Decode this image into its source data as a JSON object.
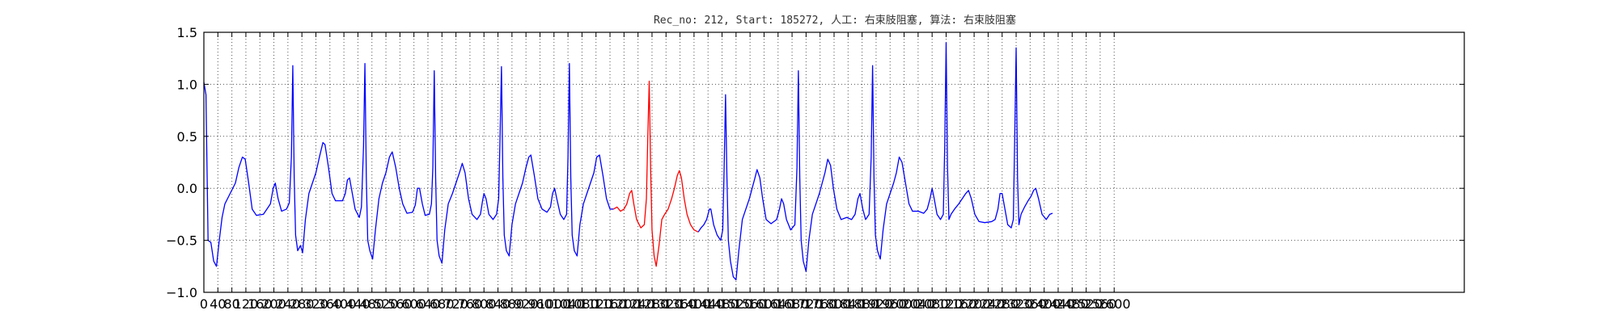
{
  "chart_data": {
    "type": "line",
    "title": "Rec_no: 212, Start: 185272, 人工: 右束肢阻塞, 算法: 右束肢阻塞",
    "xlabel": "",
    "ylabel": "",
    "xlim": [
      0,
      3600
    ],
    "ylim": [
      -1.0,
      1.5
    ],
    "grid": true,
    "y_ticks": [
      "1.5",
      "1.0",
      "0.5",
      "0.0",
      "−0.5",
      "−1.0"
    ],
    "x_ticks": [
      "0",
      "40",
      "80",
      "120",
      "160",
      "200",
      "240",
      "280",
      "320",
      "360",
      "400",
      "440",
      "480",
      "520",
      "560",
      "600",
      "640",
      "680",
      "720",
      "760",
      "800",
      "840",
      "880",
      "920",
      "960",
      "1000",
      "1040",
      "1080",
      "1120",
      "1160",
      "1200",
      "1240",
      "1280",
      "1320",
      "1360",
      "1400",
      "1440",
      "1480",
      "1520",
      "1560",
      "1600",
      "1640",
      "1680",
      "1720",
      "1760",
      "1800",
      "1840",
      "1880",
      "1920",
      "1960",
      "2000",
      "2040",
      "2080",
      "2120",
      "2160",
      "2200",
      "2240",
      "2280",
      "2320",
      "2360",
      "2400",
      "2440",
      "2480",
      "2520",
      "2560",
      "2600"
    ],
    "series": [
      {
        "color": "#0000ff",
        "values": [
          [
            0,
            1.02
          ],
          [
            6,
            0.9
          ],
          [
            12,
            -0.5
          ],
          [
            20,
            -0.52
          ],
          [
            28,
            -0.7
          ],
          [
            36,
            -0.75
          ],
          [
            44,
            -0.5
          ],
          [
            52,
            -0.28
          ],
          [
            60,
            -0.15
          ],
          [
            75,
            -0.05
          ],
          [
            90,
            0.05
          ],
          [
            100,
            0.2
          ],
          [
            110,
            0.3
          ],
          [
            118,
            0.28
          ],
          [
            128,
            0.05
          ],
          [
            138,
            -0.2
          ],
          [
            150,
            -0.26
          ],
          [
            170,
            -0.25
          ],
          [
            180,
            -0.2
          ],
          [
            190,
            -0.15
          ],
          [
            198,
            0.0
          ],
          [
            204,
            0.05
          ],
          [
            212,
            -0.1
          ],
          [
            222,
            -0.22
          ],
          [
            236,
            -0.2
          ],
          [
            244,
            -0.14
          ],
          [
            250,
            0.3
          ],
          [
            254,
            1.18
          ],
          [
            258,
            0.1
          ],
          [
            262,
            -0.45
          ],
          [
            268,
            -0.6
          ],
          [
            276,
            -0.55
          ],
          [
            282,
            -0.62
          ],
          [
            290,
            -0.3
          ],
          [
            300,
            -0.05
          ],
          [
            310,
            0.05
          ],
          [
            320,
            0.15
          ],
          [
            330,
            0.3
          ],
          [
            340,
            0.44
          ],
          [
            346,
            0.42
          ],
          [
            356,
            0.2
          ],
          [
            366,
            -0.05
          ],
          [
            376,
            -0.12
          ],
          [
            396,
            -0.12
          ],
          [
            404,
            -0.05
          ],
          [
            410,
            0.08
          ],
          [
            416,
            0.1
          ],
          [
            424,
            -0.05
          ],
          [
            432,
            -0.2
          ],
          [
            444,
            -0.28
          ],
          [
            450,
            -0.18
          ],
          [
            456,
            0.4
          ],
          [
            460,
            1.2
          ],
          [
            464,
            0.1
          ],
          [
            468,
            -0.5
          ],
          [
            474,
            -0.6
          ],
          [
            482,
            -0.68
          ],
          [
            490,
            -0.4
          ],
          [
            500,
            -0.1
          ],
          [
            510,
            0.05
          ],
          [
            520,
            0.15
          ],
          [
            530,
            0.3
          ],
          [
            538,
            0.35
          ],
          [
            548,
            0.2
          ],
          [
            558,
            0.0
          ],
          [
            568,
            -0.15
          ],
          [
            580,
            -0.24
          ],
          [
            596,
            -0.23
          ],
          [
            604,
            -0.16
          ],
          [
            610,
            0.0
          ],
          [
            616,
            0.0
          ],
          [
            624,
            -0.15
          ],
          [
            632,
            -0.26
          ],
          [
            644,
            -0.25
          ],
          [
            650,
            -0.15
          ],
          [
            654,
            0.2
          ],
          [
            658,
            1.13
          ],
          [
            662,
            0.1
          ],
          [
            666,
            -0.5
          ],
          [
            672,
            -0.65
          ],
          [
            680,
            -0.72
          ],
          [
            688,
            -0.4
          ],
          [
            698,
            -0.15
          ],
          [
            710,
            -0.05
          ],
          [
            720,
            0.05
          ],
          [
            730,
            0.15
          ],
          [
            738,
            0.24
          ],
          [
            746,
            0.15
          ],
          [
            756,
            -0.1
          ],
          [
            766,
            -0.25
          ],
          [
            780,
            -0.3
          ],
          [
            790,
            -0.25
          ],
          [
            796,
            -0.12
          ],
          [
            800,
            -0.05
          ],
          [
            806,
            -0.1
          ],
          [
            814,
            -0.25
          ],
          [
            826,
            -0.3
          ],
          [
            836,
            -0.25
          ],
          [
            842,
            -0.1
          ],
          [
            846,
            0.5
          ],
          [
            850,
            1.17
          ],
          [
            854,
            0.1
          ],
          [
            858,
            -0.45
          ],
          [
            864,
            -0.6
          ],
          [
            872,
            -0.65
          ],
          [
            880,
            -0.35
          ],
          [
            890,
            -0.15
          ],
          [
            900,
            -0.05
          ],
          [
            910,
            0.05
          ],
          [
            920,
            0.2
          ],
          [
            928,
            0.3
          ],
          [
            934,
            0.32
          ],
          [
            944,
            0.12
          ],
          [
            954,
            -0.1
          ],
          [
            966,
            -0.2
          ],
          [
            980,
            -0.23
          ],
          [
            990,
            -0.18
          ],
          [
            996,
            -0.05
          ],
          [
            1002,
            0.0
          ],
          [
            1008,
            -0.1
          ],
          [
            1018,
            -0.25
          ],
          [
            1028,
            -0.3
          ],
          [
            1036,
            -0.25
          ],
          [
            1040,
            0.3
          ],
          [
            1044,
            1.2
          ],
          [
            1048,
            0.1
          ],
          [
            1052,
            -0.45
          ],
          [
            1058,
            -0.6
          ],
          [
            1066,
            -0.65
          ],
          [
            1074,
            -0.35
          ],
          [
            1084,
            -0.15
          ],
          [
            1094,
            -0.05
          ],
          [
            1104,
            0.05
          ],
          [
            1114,
            0.15
          ],
          [
            1122,
            0.3
          ],
          [
            1130,
            0.32
          ],
          [
            1140,
            0.12
          ],
          [
            1150,
            -0.1
          ],
          [
            1160,
            -0.2
          ],
          [
            1170,
            -0.2
          ]
        ]
      },
      {
        "color": "#ff0000",
        "values": [
          [
            1170,
            -0.2
          ],
          [
            1180,
            -0.18
          ],
          [
            1190,
            -0.22
          ],
          [
            1200,
            -0.2
          ],
          [
            1208,
            -0.15
          ],
          [
            1216,
            -0.05
          ],
          [
            1222,
            -0.02
          ],
          [
            1228,
            -0.15
          ],
          [
            1236,
            -0.3
          ],
          [
            1248,
            -0.38
          ],
          [
            1258,
            -0.35
          ],
          [
            1264,
            -0.1
          ],
          [
            1268,
            0.5
          ],
          [
            1272,
            1.03
          ],
          [
            1276,
            0.2
          ],
          [
            1280,
            -0.4
          ],
          [
            1286,
            -0.65
          ],
          [
            1292,
            -0.75
          ],
          [
            1300,
            -0.55
          ],
          [
            1308,
            -0.3
          ],
          [
            1316,
            -0.25
          ],
          [
            1326,
            -0.2
          ],
          [
            1336,
            -0.1
          ],
          [
            1344,
            0.0
          ],
          [
            1352,
            0.12
          ],
          [
            1358,
            0.17
          ],
          [
            1364,
            0.1
          ],
          [
            1372,
            -0.1
          ],
          [
            1380,
            -0.25
          ],
          [
            1390,
            -0.35
          ],
          [
            1400,
            -0.4
          ],
          [
            1412,
            -0.42
          ]
        ]
      },
      {
        "color": "#0000ff",
        "values": [
          [
            1412,
            -0.42
          ],
          [
            1420,
            -0.38
          ],
          [
            1428,
            -0.35
          ],
          [
            1436,
            -0.3
          ],
          [
            1444,
            -0.2
          ],
          [
            1448,
            -0.2
          ],
          [
            1456,
            -0.35
          ],
          [
            1466,
            -0.45
          ],
          [
            1476,
            -0.5
          ],
          [
            1482,
            -0.4
          ],
          [
            1486,
            0.2
          ],
          [
            1490,
            0.9
          ],
          [
            1494,
            0.1
          ],
          [
            1498,
            -0.5
          ],
          [
            1504,
            -0.7
          ],
          [
            1512,
            -0.85
          ],
          [
            1520,
            -0.88
          ],
          [
            1528,
            -0.6
          ],
          [
            1538,
            -0.3
          ],
          [
            1548,
            -0.2
          ],
          [
            1558,
            -0.1
          ],
          [
            1566,
            0.0
          ],
          [
            1574,
            0.1
          ],
          [
            1580,
            0.18
          ],
          [
            1588,
            0.1
          ],
          [
            1596,
            -0.1
          ],
          [
            1606,
            -0.3
          ],
          [
            1620,
            -0.34
          ],
          [
            1636,
            -0.3
          ],
          [
            1644,
            -0.2
          ],
          [
            1650,
            -0.1
          ],
          [
            1656,
            -0.15
          ],
          [
            1664,
            -0.3
          ],
          [
            1676,
            -0.4
          ],
          [
            1688,
            -0.35
          ],
          [
            1694,
            0.2
          ],
          [
            1698,
            1.13
          ],
          [
            1702,
            0.1
          ],
          [
            1706,
            -0.5
          ],
          [
            1712,
            -0.7
          ],
          [
            1720,
            -0.8
          ],
          [
            1728,
            -0.5
          ],
          [
            1738,
            -0.25
          ],
          [
            1748,
            -0.15
          ],
          [
            1758,
            -0.05
          ],
          [
            1766,
            0.05
          ],
          [
            1774,
            0.15
          ],
          [
            1782,
            0.28
          ],
          [
            1790,
            0.22
          ],
          [
            1798,
            0.0
          ],
          [
            1808,
            -0.2
          ],
          [
            1820,
            -0.3
          ],
          [
            1836,
            -0.28
          ],
          [
            1850,
            -0.3
          ],
          [
            1860,
            -0.25
          ],
          [
            1868,
            -0.1
          ],
          [
            1874,
            -0.05
          ],
          [
            1882,
            -0.2
          ],
          [
            1890,
            -0.3
          ],
          [
            1900,
            -0.25
          ],
          [
            1906,
            0.3
          ],
          [
            1910,
            1.18
          ],
          [
            1914,
            0.1
          ],
          [
            1918,
            -0.45
          ],
          [
            1924,
            -0.6
          ],
          [
            1932,
            -0.68
          ],
          [
            1940,
            -0.4
          ],
          [
            1950,
            -0.15
          ],
          [
            1960,
            -0.05
          ],
          [
            1970,
            0.05
          ],
          [
            1978,
            0.15
          ],
          [
            1986,
            0.3
          ],
          [
            1994,
            0.25
          ],
          [
            2004,
            0.05
          ],
          [
            2014,
            -0.15
          ],
          [
            2024,
            -0.22
          ],
          [
            2040,
            -0.22
          ],
          [
            2056,
            -0.24
          ],
          [
            2066,
            -0.2
          ],
          [
            2074,
            -0.1
          ],
          [
            2080,
            0.0
          ],
          [
            2086,
            -0.1
          ],
          [
            2094,
            -0.25
          ],
          [
            2104,
            -0.3
          ],
          [
            2112,
            -0.25
          ],
          [
            2116,
            0.4
          ],
          [
            2120,
            1.4
          ],
          [
            2124,
            0.2
          ],
          [
            2128,
            -0.3
          ],
          [
            2134,
            -0.25
          ],
          [
            2144,
            -0.2
          ],
          [
            2156,
            -0.15
          ],
          [
            2166,
            -0.1
          ],
          [
            2176,
            -0.05
          ],
          [
            2184,
            -0.02
          ],
          [
            2192,
            -0.1
          ],
          [
            2202,
            -0.25
          ],
          [
            2214,
            -0.32
          ],
          [
            2230,
            -0.33
          ],
          [
            2250,
            -0.32
          ],
          [
            2260,
            -0.3
          ],
          [
            2268,
            -0.2
          ],
          [
            2274,
            -0.05
          ],
          [
            2280,
            -0.05
          ],
          [
            2288,
            -0.2
          ],
          [
            2296,
            -0.35
          ],
          [
            2306,
            -0.38
          ],
          [
            2312,
            -0.3
          ],
          [
            2316,
            0.5
          ],
          [
            2320,
            1.35
          ],
          [
            2324,
            0.1
          ],
          [
            2328,
            -0.35
          ],
          [
            2334,
            -0.25
          ],
          [
            2344,
            -0.18
          ],
          [
            2354,
            -0.12
          ],
          [
            2362,
            -0.08
          ],
          [
            2370,
            -0.02
          ],
          [
            2376,
            0.0
          ],
          [
            2384,
            -0.1
          ],
          [
            2394,
            -0.25
          ],
          [
            2406,
            -0.3
          ],
          [
            2416,
            -0.25
          ],
          [
            2424,
            -0.24
          ]
        ]
      }
    ]
  }
}
